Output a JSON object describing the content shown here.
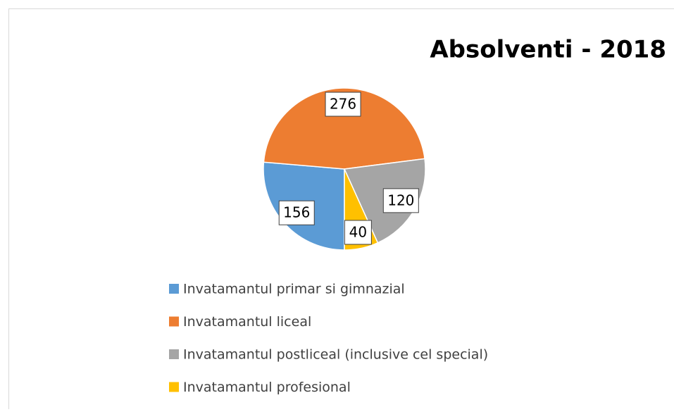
{
  "chart_data": {
    "type": "pie",
    "title": "Absolventi - 2018",
    "categories": [
      "Invatamantul primar si gimnazial",
      "Invatamantul liceal",
      "Invatamantul postliceal (inclusive cel special)",
      "Invatamantul profesional"
    ],
    "values": [
      156,
      276,
      120,
      40
    ],
    "colors": [
      "#5b9bd5",
      "#ed7d31",
      "#a5a5a5",
      "#ffc000"
    ],
    "legend": "bottom"
  }
}
